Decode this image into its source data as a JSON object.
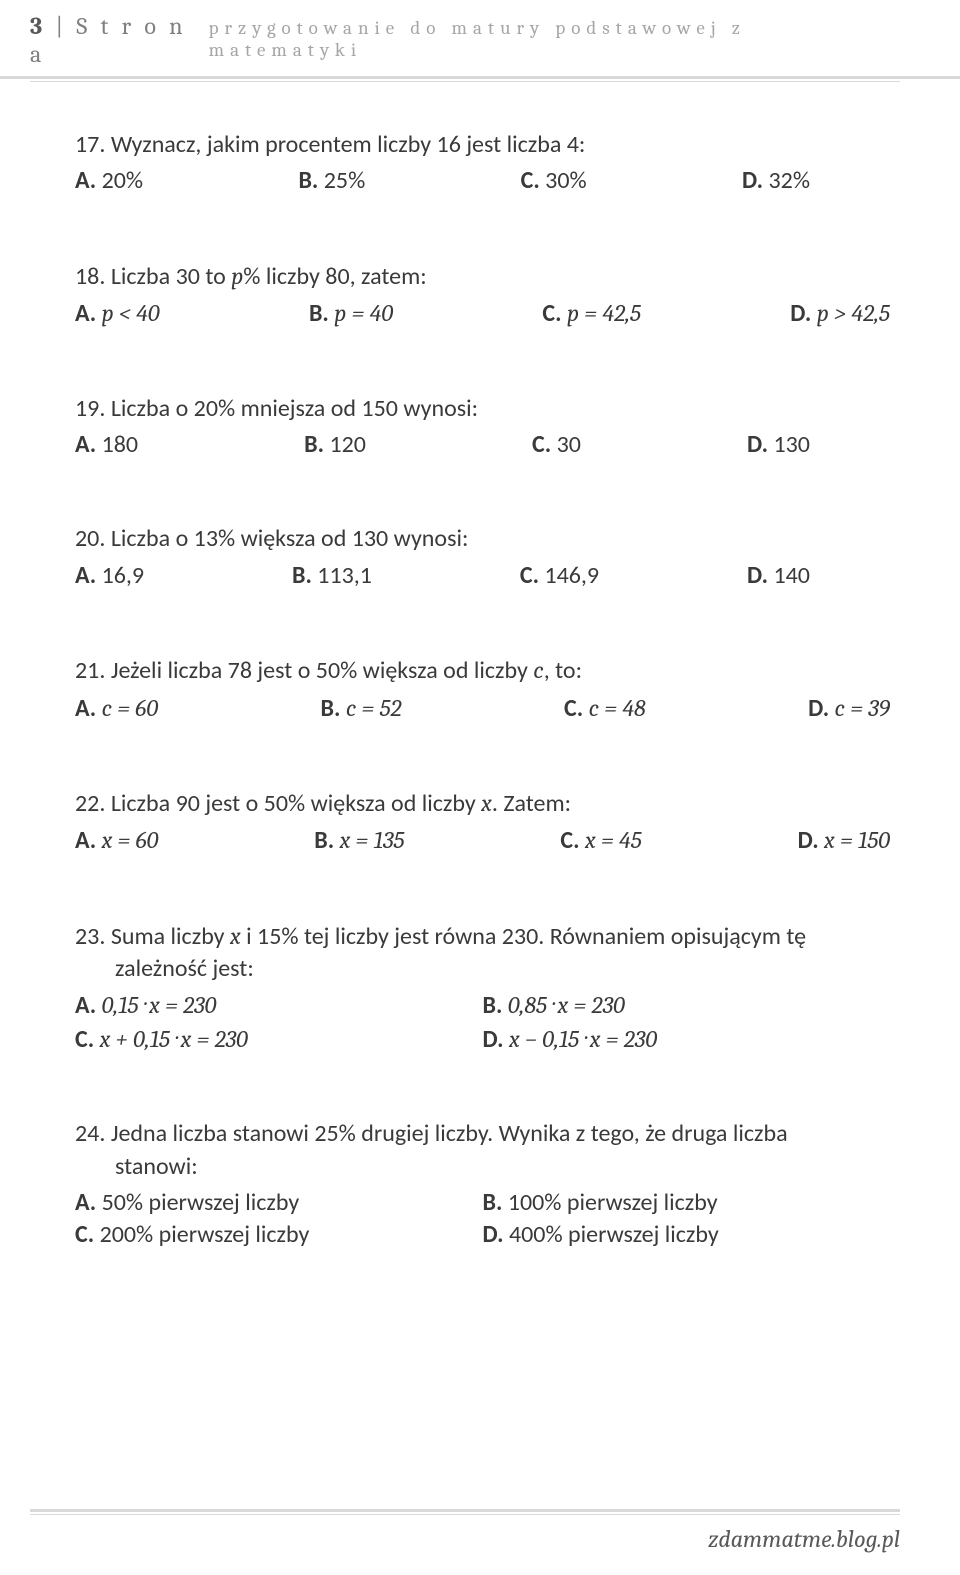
{
  "header": {
    "page_number": "3",
    "page_label": "S t r o n a",
    "right_text": "przygotowanie do matury podstawowej z matematyki"
  },
  "footer": {
    "text": "zdammatme.blog.pl"
  },
  "q17": {
    "text": "17. Wyznacz, jakim procentem liczby 16 jest liczba 4:",
    "A": "20%",
    "B": "25%",
    "C": "30%",
    "D": "32%"
  },
  "q18": {
    "text_pre": "18. Liczba 30 to ",
    "text_var": "p",
    "text_post": "% liczby 80, zatem:",
    "A": "p < 40",
    "B": "p = 40",
    "C": "p = 42,5",
    "D": "p > 42,5"
  },
  "q19": {
    "text": "19. Liczba o 20% mniejsza od 150 wynosi:",
    "A": "180",
    "B": "120",
    "C": "30",
    "D": "130"
  },
  "q20": {
    "text": "20. Liczba o 13% większa od 130 wynosi:",
    "A": "16,9",
    "B": "113,1",
    "C": "146,9",
    "D": "140"
  },
  "q21": {
    "text_pre": "21. Jeżeli liczba 78 jest o 50% większa od liczby ",
    "text_var": "c",
    "text_post": ", to:",
    "A": "c  =  60",
    "B": "c  =  52",
    "C": "c  =  48",
    "D": "c  =  39"
  },
  "q22": {
    "text_pre": "22. Liczba 90 jest o 50% większa od liczby ",
    "text_var": "x",
    "text_post": ". Zatem:",
    "A": "x = 60",
    "B": "x = 135",
    "C": "x = 45",
    "D": "x = 150"
  },
  "q23": {
    "text_pre": "23. Suma liczby ",
    "text_var": "x",
    "text_mid": " i 15% tej liczby jest równa 230. Równaniem opisującym tę",
    "text_line2": "zależność jest:",
    "A": "0,15 · x = 230",
    "B": "0,85 · x = 230",
    "C": "x + 0,15 · x = 230",
    "D": "x − 0,15 · x = 230"
  },
  "q24": {
    "line1": "24. Jedna liczba stanowi 25% drugiej liczby. Wynika z tego, że druga liczba",
    "line2": "stanowi:",
    "A": "50% pierwszej liczby",
    "B": "100% pierwszej liczby",
    "C": "200% pierwszej liczby",
    "D": "400% pierwszej liczby"
  },
  "labels": {
    "A": "A.",
    "B": "B.",
    "C": "C.",
    "D": "D."
  }
}
